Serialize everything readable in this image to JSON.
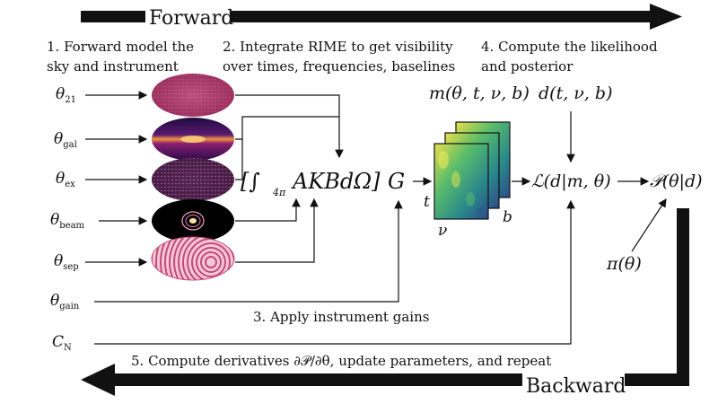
{
  "banners": {
    "forward": "Forward",
    "backward": "Backward"
  },
  "steps": {
    "s1_line1": "1. Forward model the",
    "s1_line2": "sky and instrument",
    "s2_line1": "2. Integrate RIME to get visibility",
    "s2_line2": "over times, frequencies, baselines",
    "s3": "3. Apply instrument gains",
    "s4_line1": "4. Compute the likelihood",
    "s4_line2": "and posterior",
    "s5": "5. Compute derivatives ∂𝒫/∂θ, update parameters, and repeat"
  },
  "params": [
    {
      "sym": "θ",
      "sub": "21"
    },
    {
      "sym": "θ",
      "sub": "gal"
    },
    {
      "sym": "θ",
      "sub": "ex"
    },
    {
      "sym": "θ",
      "sub": "beam"
    },
    {
      "sym": "θ",
      "sub": "sep"
    },
    {
      "sym": "θ",
      "sub": "gain"
    },
    {
      "sym": "C",
      "sub": "N"
    }
  ],
  "equations": {
    "rime": "[∫",
    "rime_sub": "4π",
    "rime_body": "AKBdΩ]",
    "gain": "G",
    "model": "m(θ, t, ν, b)",
    "data": "d(t, ν, b)",
    "likelihood": "ℒ(d|m, θ)",
    "posterior": "𝒫(θ|d)",
    "prior": "π(θ)",
    "axis_t": "t",
    "axis_nu": "ν",
    "axis_b": "b"
  },
  "colors": {
    "ink": "#111111",
    "map21": "#c8406a",
    "galaxy_core": "#f6a34a",
    "galaxy_band": "#7a1f6e",
    "galaxy_bg": "#2a0a45",
    "extragal": "#5a2a5a",
    "beam_bg": "#000000",
    "beam_rings": "#f5a0c8",
    "sep_ring": "#c44a78",
    "vis_yellow": "#e4e24a",
    "vis_green": "#3aa87a",
    "vis_blue": "#2a4f8a"
  }
}
